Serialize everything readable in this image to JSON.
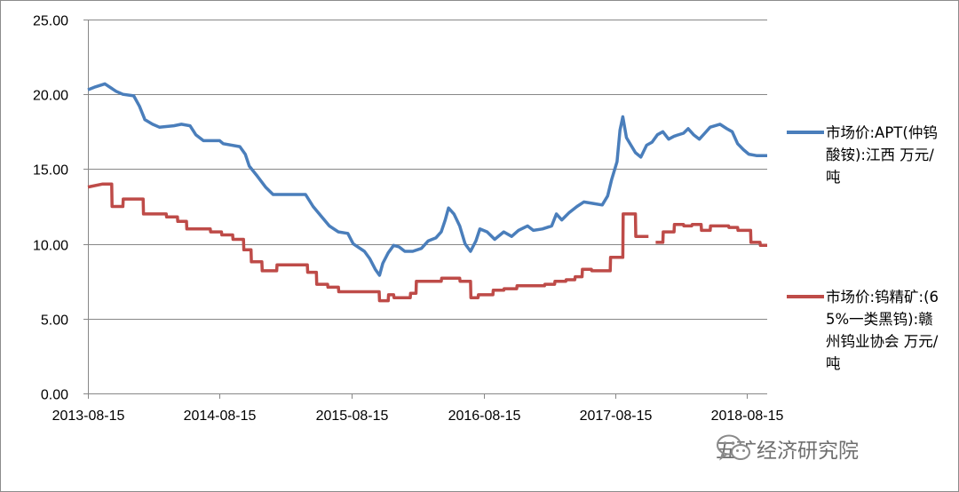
{
  "chart_data": {
    "type": "line",
    "title": "",
    "xlabel": "",
    "ylabel": "",
    "ylim": [
      0,
      25
    ],
    "yticks": [
      "0.00",
      "5.00",
      "10.00",
      "15.00",
      "20.00",
      "25.00"
    ],
    "xlim": [
      "2013-08-15",
      "2018-10-10"
    ],
    "xticks": [
      "2013-08-15",
      "2014-08-15",
      "2015-08-15",
      "2016-08-15",
      "2017-08-15",
      "2018-08-15"
    ],
    "grid": "horizontal",
    "legend_position": "right",
    "series": [
      {
        "name": "市场价:APT(仲钨酸铵):江西 万元/吨",
        "color": "#4a7ebb",
        "points": [
          [
            "2013-08-15",
            20.3
          ],
          [
            "2013-09-05",
            20.5
          ],
          [
            "2013-10-01",
            20.7
          ],
          [
            "2013-10-20",
            20.4
          ],
          [
            "2013-11-01",
            20.2
          ],
          [
            "2013-11-20",
            20.0
          ],
          [
            "2013-12-20",
            19.9
          ],
          [
            "2014-01-05",
            19.2
          ],
          [
            "2014-01-20",
            18.3
          ],
          [
            "2014-02-10",
            18.0
          ],
          [
            "2014-03-01",
            17.8
          ],
          [
            "2014-04-10",
            17.9
          ],
          [
            "2014-05-01",
            18.0
          ],
          [
            "2014-05-25",
            17.9
          ],
          [
            "2014-06-10",
            17.3
          ],
          [
            "2014-07-01",
            16.9
          ],
          [
            "2014-08-15",
            16.9
          ],
          [
            "2014-08-25",
            16.7
          ],
          [
            "2014-10-10",
            16.5
          ],
          [
            "2014-10-25",
            16.0
          ],
          [
            "2014-11-05",
            15.2
          ],
          [
            "2014-11-25",
            14.6
          ],
          [
            "2014-12-20",
            13.8
          ],
          [
            "2015-01-10",
            13.3
          ],
          [
            "2015-02-15",
            13.3
          ],
          [
            "2015-03-15",
            13.3
          ],
          [
            "2015-04-10",
            13.3
          ],
          [
            "2015-05-01",
            12.5
          ],
          [
            "2015-05-25",
            11.8
          ],
          [
            "2015-06-15",
            11.2
          ],
          [
            "2015-07-10",
            10.8
          ],
          [
            "2015-08-05",
            10.7
          ],
          [
            "2015-08-20",
            10.0
          ],
          [
            "2015-09-20",
            9.5
          ],
          [
            "2015-10-05",
            9.0
          ],
          [
            "2015-10-20",
            8.3
          ],
          [
            "2015-11-01",
            7.9
          ],
          [
            "2015-11-10",
            8.7
          ],
          [
            "2015-11-25",
            9.4
          ],
          [
            "2015-12-10",
            9.9
          ],
          [
            "2015-12-25",
            9.8
          ],
          [
            "2016-01-10",
            9.5
          ],
          [
            "2016-02-01",
            9.5
          ],
          [
            "2016-02-25",
            9.7
          ],
          [
            "2016-03-15",
            10.2
          ],
          [
            "2016-04-05",
            10.4
          ],
          [
            "2016-04-20",
            10.8
          ],
          [
            "2016-05-01",
            11.6
          ],
          [
            "2016-05-10",
            12.4
          ],
          [
            "2016-05-25",
            12.0
          ],
          [
            "2016-06-10",
            11.2
          ],
          [
            "2016-06-25",
            10.0
          ],
          [
            "2016-07-10",
            9.5
          ],
          [
            "2016-07-25",
            10.2
          ],
          [
            "2016-08-05",
            11.0
          ],
          [
            "2016-08-25",
            10.8
          ],
          [
            "2016-09-15",
            10.3
          ],
          [
            "2016-10-10",
            10.8
          ],
          [
            "2016-11-01",
            10.5
          ],
          [
            "2016-11-20",
            10.9
          ],
          [
            "2016-12-15",
            11.2
          ],
          [
            "2016-12-31",
            10.9
          ],
          [
            "2017-01-25",
            11.0
          ],
          [
            "2017-02-20",
            11.2
          ],
          [
            "2017-03-05",
            12.0
          ],
          [
            "2017-03-20",
            11.6
          ],
          [
            "2017-04-10",
            12.1
          ],
          [
            "2017-05-01",
            12.5
          ],
          [
            "2017-05-20",
            12.8
          ],
          [
            "2017-06-15",
            12.7
          ],
          [
            "2017-07-10",
            12.6
          ],
          [
            "2017-07-25",
            13.2
          ],
          [
            "2017-08-05",
            14.3
          ],
          [
            "2017-08-20",
            15.5
          ],
          [
            "2017-08-28",
            17.6
          ],
          [
            "2017-09-05",
            18.5
          ],
          [
            "2017-09-15",
            17.1
          ],
          [
            "2017-09-25",
            16.7
          ],
          [
            "2017-10-10",
            16.1
          ],
          [
            "2017-10-25",
            15.8
          ],
          [
            "2017-11-10",
            16.6
          ],
          [
            "2017-11-25",
            16.8
          ],
          [
            "2017-12-10",
            17.3
          ],
          [
            "2017-12-25",
            17.5
          ],
          [
            "2018-01-10",
            17.0
          ],
          [
            "2018-01-25",
            17.2
          ],
          [
            "2018-02-20",
            17.4
          ],
          [
            "2018-03-05",
            17.7
          ],
          [
            "2018-03-20",
            17.3
          ],
          [
            "2018-04-05",
            17.0
          ],
          [
            "2018-04-20",
            17.4
          ],
          [
            "2018-05-05",
            17.8
          ],
          [
            "2018-06-01",
            18.0
          ],
          [
            "2018-06-20",
            17.7
          ],
          [
            "2018-07-05",
            17.5
          ],
          [
            "2018-07-20",
            16.7
          ],
          [
            "2018-08-05",
            16.3
          ],
          [
            "2018-08-20",
            16.0
          ],
          [
            "2018-09-10",
            15.9
          ],
          [
            "2018-10-10",
            15.9
          ]
        ]
      },
      {
        "name": "市场价:钨精矿:(65%一类黑钨):赣州钨业协会 万元/吨",
        "color": "#be4b48",
        "points": [
          [
            "2013-08-15",
            13.8
          ],
          [
            "2013-09-25",
            14.0
          ],
          [
            "2013-10-20",
            14.0
          ],
          [
            "2013-10-21",
            12.5
          ],
          [
            "2013-11-20",
            12.5
          ],
          [
            "2013-11-21",
            13.0
          ],
          [
            "2014-01-15",
            13.0
          ],
          [
            "2014-01-16",
            12.0
          ],
          [
            "2014-03-20",
            12.0
          ],
          [
            "2014-03-21",
            11.8
          ],
          [
            "2014-04-20",
            11.8
          ],
          [
            "2014-04-21",
            11.5
          ],
          [
            "2014-05-15",
            11.5
          ],
          [
            "2014-05-16",
            11.0
          ],
          [
            "2014-07-20",
            11.0
          ],
          [
            "2014-07-21",
            10.8
          ],
          [
            "2014-08-20",
            10.8
          ],
          [
            "2014-08-21",
            10.6
          ],
          [
            "2014-09-20",
            10.6
          ],
          [
            "2014-09-21",
            10.3
          ],
          [
            "2014-10-20",
            10.3
          ],
          [
            "2014-10-21",
            9.6
          ],
          [
            "2014-11-10",
            9.6
          ],
          [
            "2014-11-11",
            8.8
          ],
          [
            "2014-12-10",
            8.8
          ],
          [
            "2014-12-11",
            8.2
          ],
          [
            "2015-01-20",
            8.2
          ],
          [
            "2015-01-21",
            8.6
          ],
          [
            "2015-04-15",
            8.6
          ],
          [
            "2015-04-16",
            8.1
          ],
          [
            "2015-05-10",
            8.1
          ],
          [
            "2015-05-11",
            7.3
          ],
          [
            "2015-06-10",
            7.3
          ],
          [
            "2015-06-11",
            7.1
          ],
          [
            "2015-07-10",
            7.1
          ],
          [
            "2015-07-11",
            6.8
          ],
          [
            "2015-10-31",
            6.8
          ],
          [
            "2015-11-01",
            6.2
          ],
          [
            "2015-11-25",
            6.2
          ],
          [
            "2015-11-26",
            6.6
          ],
          [
            "2015-12-10",
            6.6
          ],
          [
            "2015-12-11",
            6.4
          ],
          [
            "2016-01-25",
            6.4
          ],
          [
            "2016-01-26",
            6.7
          ],
          [
            "2016-02-10",
            6.7
          ],
          [
            "2016-02-11",
            7.5
          ],
          [
            "2016-04-20",
            7.5
          ],
          [
            "2016-04-21",
            7.7
          ],
          [
            "2016-06-10",
            7.7
          ],
          [
            "2016-06-11",
            7.5
          ],
          [
            "2016-07-10",
            7.5
          ],
          [
            "2016-07-11",
            6.4
          ],
          [
            "2016-07-31",
            6.4
          ],
          [
            "2016-08-01",
            6.6
          ],
          [
            "2016-09-10",
            6.6
          ],
          [
            "2016-09-11",
            6.9
          ],
          [
            "2016-10-10",
            6.9
          ],
          [
            "2016-10-11",
            7.0
          ],
          [
            "2016-11-15",
            7.0
          ],
          [
            "2016-11-16",
            7.2
          ],
          [
            "2017-01-31",
            7.2
          ],
          [
            "2017-02-01",
            7.3
          ],
          [
            "2017-02-28",
            7.3
          ],
          [
            "2017-03-01",
            7.5
          ],
          [
            "2017-03-31",
            7.5
          ],
          [
            "2017-04-01",
            7.6
          ],
          [
            "2017-04-25",
            7.6
          ],
          [
            "2017-04-26",
            7.8
          ],
          [
            "2017-05-15",
            7.8
          ],
          [
            "2017-05-16",
            8.3
          ],
          [
            "2017-06-10",
            8.3
          ],
          [
            "2017-06-11",
            8.2
          ],
          [
            "2017-08-01",
            8.2
          ],
          [
            "2017-08-02",
            9.1
          ],
          [
            "2017-09-05",
            9.1
          ],
          [
            "2017-09-06",
            12.0
          ],
          [
            "2017-10-10",
            12.0
          ],
          [
            "2017-10-11",
            10.5
          ],
          [
            "2017-11-15",
            10.5
          ],
          null,
          [
            "2017-12-05",
            10.1
          ],
          [
            "2017-12-25",
            10.1
          ],
          [
            "2017-12-26",
            10.8
          ],
          [
            "2018-01-25",
            10.8
          ],
          [
            "2018-01-26",
            11.3
          ],
          [
            "2018-02-20",
            11.3
          ],
          [
            "2018-02-21",
            11.2
          ],
          [
            "2018-03-15",
            11.2
          ],
          [
            "2018-03-16",
            11.3
          ],
          [
            "2018-04-10",
            11.3
          ],
          [
            "2018-04-11",
            10.9
          ],
          [
            "2018-05-05",
            10.9
          ],
          [
            "2018-05-06",
            11.2
          ],
          [
            "2018-06-25",
            11.2
          ],
          [
            "2018-06-26",
            11.1
          ],
          [
            "2018-07-20",
            11.1
          ],
          [
            "2018-07-21",
            10.9
          ],
          [
            "2018-08-25",
            10.9
          ],
          [
            "2018-08-26",
            10.1
          ],
          [
            "2018-09-20",
            10.1
          ],
          [
            "2018-09-21",
            9.9
          ],
          [
            "2018-10-10",
            9.9
          ]
        ]
      }
    ]
  },
  "legend": [
    {
      "label": "市场价:APT(仲钨酸铵):江西 万元/吨",
      "color": "#4a7ebb"
    },
    {
      "label": "市场价:钨精矿:(65%一类黑钨):赣州钨业协会 万元/吨",
      "color": "#be4b48"
    }
  ],
  "watermark": {
    "text": "五矿经济研究院"
  }
}
